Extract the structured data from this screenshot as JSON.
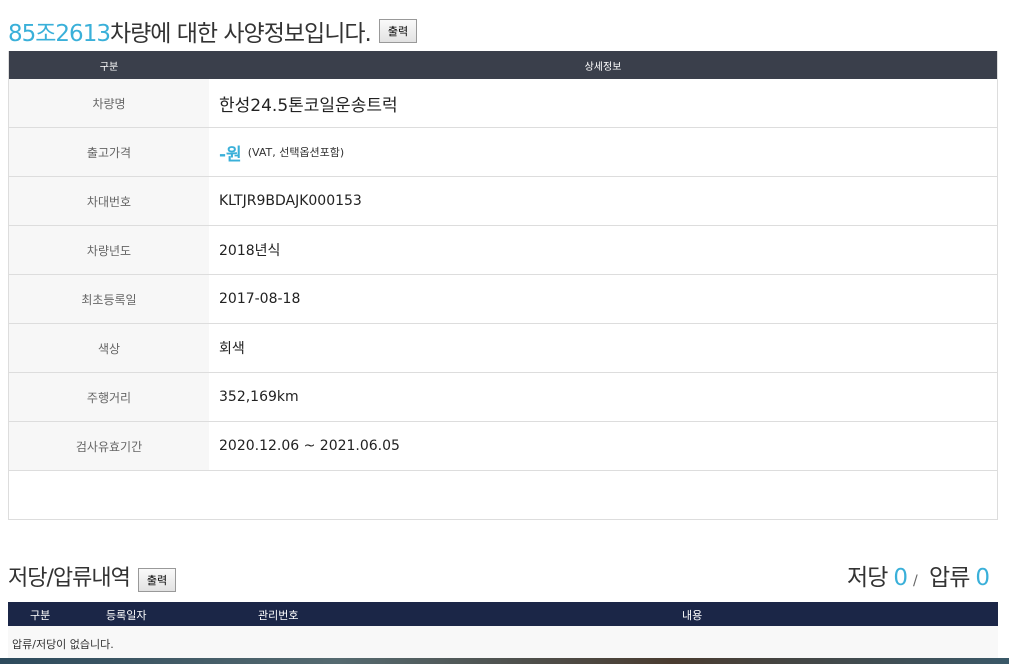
{
  "title": {
    "plate": "85조2613",
    "text": " 차량에 대한 사양정보입니다.",
    "print_label": "출력"
  },
  "spec": {
    "headers": [
      "구분",
      "상세정보"
    ],
    "rows": [
      {
        "label": "차량명",
        "value": "한성24.5톤코일운송트럭"
      },
      {
        "label": "출고가격",
        "value": "-원",
        "note": "(VAT, 선택옵션포함)"
      },
      {
        "label": "차대번호",
        "value": "KLTJR9BDAJK000153"
      },
      {
        "label": "차량년도",
        "value": "2018년식"
      },
      {
        "label": "최초등록일",
        "value": "2017-08-18"
      },
      {
        "label": "색상",
        "value": "회색"
      },
      {
        "label": "주행거리",
        "value": "352,169km"
      },
      {
        "label": "검사유효기간",
        "value": "2020.12.06 ~ 2021.06.05"
      }
    ]
  },
  "lien": {
    "title": "저당/압류내역",
    "print_label": "출력",
    "mortgage_label": "저당",
    "mortgage_count": "0",
    "separator": "/",
    "seizure_label": "압류",
    "seizure_count": "0",
    "headers": [
      "구분",
      "등록일자",
      "관리번호",
      "내용"
    ],
    "empty": "압류/저당이 없습니다."
  },
  "colors": {
    "accent": "#3ab0d9",
    "header_dark": "#3a3f4b",
    "header_navy": "#1b2647"
  }
}
